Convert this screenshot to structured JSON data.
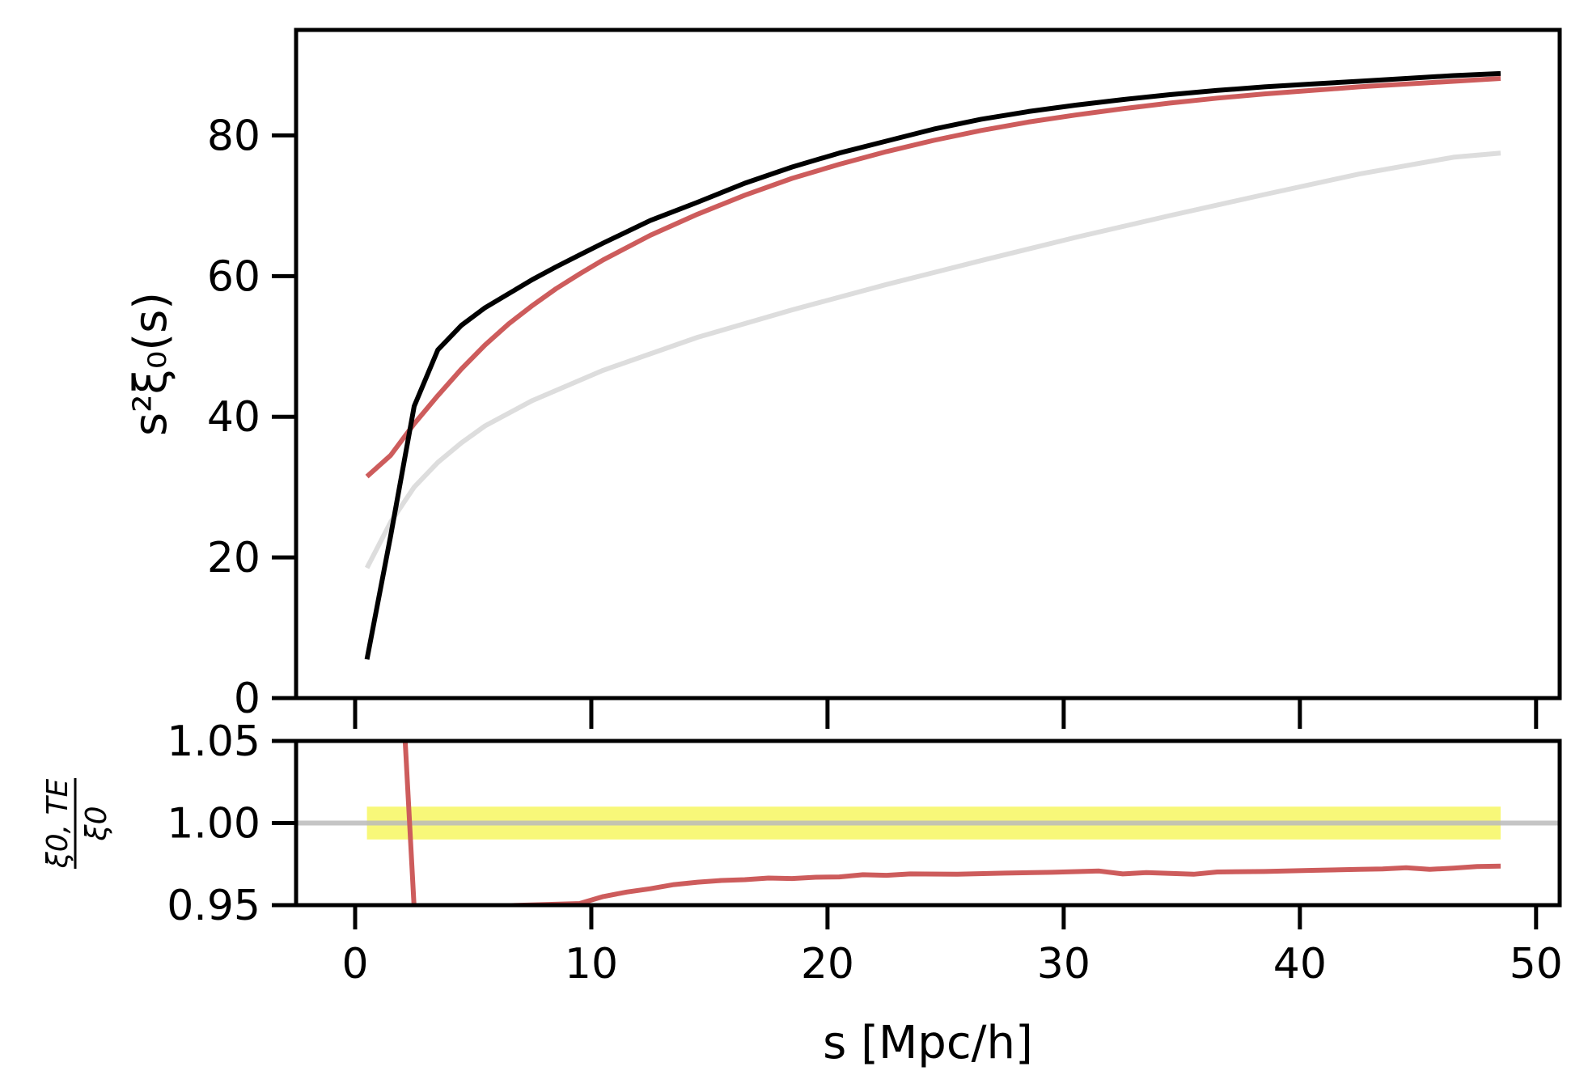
{
  "chart_data": [
    {
      "panel": "top",
      "type": "line",
      "xlim": [
        -2.5,
        51
      ],
      "ylim": [
        0,
        95
      ],
      "ylabel": "s²ξ₀(s)",
      "yticks": [
        0,
        20,
        40,
        60,
        80
      ],
      "grid": false,
      "series": [
        {
          "name": "black",
          "color": "#000000",
          "x": [
            0.5,
            1.5,
            2.5,
            3.5,
            4.5,
            5.5,
            6.5,
            7.5,
            8.5,
            9.5,
            10.5,
            12.5,
            14.5,
            16.5,
            18.5,
            20.5,
            22.5,
            24.5,
            26.5,
            28.5,
            30.5,
            32.5,
            34.5,
            36.5,
            38.5,
            40.5,
            42.5,
            44.5,
            46.5,
            48.5
          ],
          "y": [
            5.5,
            23,
            41.5,
            49.5,
            53,
            55.5,
            57.5,
            59.5,
            61.3,
            63,
            64.7,
            67.9,
            70.5,
            73.2,
            75.5,
            77.5,
            79.2,
            80.9,
            82.3,
            83.4,
            84.3,
            85.1,
            85.8,
            86.4,
            86.9,
            87.3,
            87.7,
            88.1,
            88.5,
            88.8
          ]
        },
        {
          "name": "red",
          "color": "#cd5c5c",
          "x": [
            0.5,
            1.5,
            2.5,
            3.5,
            4.5,
            5.5,
            6.5,
            7.5,
            8.5,
            9.5,
            10.5,
            12.5,
            14.5,
            16.5,
            18.5,
            20.5,
            22.5,
            24.5,
            26.5,
            28.5,
            30.5,
            32.5,
            34.5,
            36.5,
            38.5,
            40.5,
            42.5,
            44.5,
            46.5,
            48.5
          ],
          "y": [
            31.5,
            34.5,
            39,
            43,
            46.8,
            50.2,
            53.2,
            55.8,
            58.2,
            60.3,
            62.3,
            65.8,
            68.8,
            71.5,
            73.9,
            75.9,
            77.7,
            79.3,
            80.7,
            81.9,
            82.9,
            83.8,
            84.6,
            85.3,
            85.9,
            86.4,
            86.9,
            87.3,
            87.7,
            88.1
          ]
        },
        {
          "name": "gray",
          "color": "#dddddd",
          "x": [
            0.5,
            1.5,
            2.5,
            3.5,
            4.5,
            5.5,
            7.5,
            10.5,
            14.5,
            18.5,
            22.5,
            26.5,
            30.5,
            34.5,
            38.5,
            42.5,
            46.5,
            48.5
          ],
          "y": [
            18.5,
            25,
            30,
            33.5,
            36.3,
            38.7,
            42.3,
            46.6,
            51.3,
            55.2,
            58.8,
            62.2,
            65.5,
            68.6,
            71.6,
            74.5,
            76.9,
            77.5
          ]
        }
      ]
    },
    {
      "panel": "bottom",
      "type": "line",
      "xlim": [
        -2.5,
        51
      ],
      "ylim": [
        0.95,
        1.05
      ],
      "xlabel": "s [Mpc/h]",
      "ylabel_numerator": "ξ0, TE",
      "ylabel_denominator": "ξ0",
      "xticks": [
        0,
        10,
        20,
        30,
        40,
        50
      ],
      "yticks": [
        0.95,
        1.0,
        1.05
      ],
      "ytick_labels": [
        "0.95",
        "1.00",
        "1.05"
      ],
      "grid": false,
      "reference_line": {
        "y": 1.0,
        "color": "#bbbbbb"
      },
      "band": {
        "x0": 0.5,
        "x1": 48.5,
        "y0": 0.99,
        "y1": 1.01,
        "color": "#f7f76a"
      },
      "series": [
        {
          "name": "red-ratio",
          "color": "#cd5c5c",
          "x": [
            2.1,
            2.5,
            9.5,
            10.5,
            11.5,
            12.5,
            13.5,
            14.5,
            15.5,
            16.5,
            17.5,
            18.5,
            19.5,
            20.5,
            21.5,
            22.5,
            23.5,
            25.5,
            27.5,
            29.5,
            31.5,
            32.5,
            33.5,
            35.5,
            36.5,
            38.5,
            40.5,
            42.5,
            43.5,
            44.5,
            45.5,
            46.5,
            47.5,
            48.5
          ],
          "y": [
            1.055,
            0.948,
            0.951,
            0.9552,
            0.958,
            0.96,
            0.9625,
            0.964,
            0.965,
            0.9655,
            0.9665,
            0.9662,
            0.967,
            0.9672,
            0.9685,
            0.9682,
            0.969,
            0.9688,
            0.9695,
            0.97,
            0.9708,
            0.969,
            0.9698,
            0.9688,
            0.9702,
            0.9705,
            0.9712,
            0.9718,
            0.972,
            0.9728,
            0.9718,
            0.9725,
            0.9735,
            0.9738
          ]
        }
      ]
    }
  ]
}
